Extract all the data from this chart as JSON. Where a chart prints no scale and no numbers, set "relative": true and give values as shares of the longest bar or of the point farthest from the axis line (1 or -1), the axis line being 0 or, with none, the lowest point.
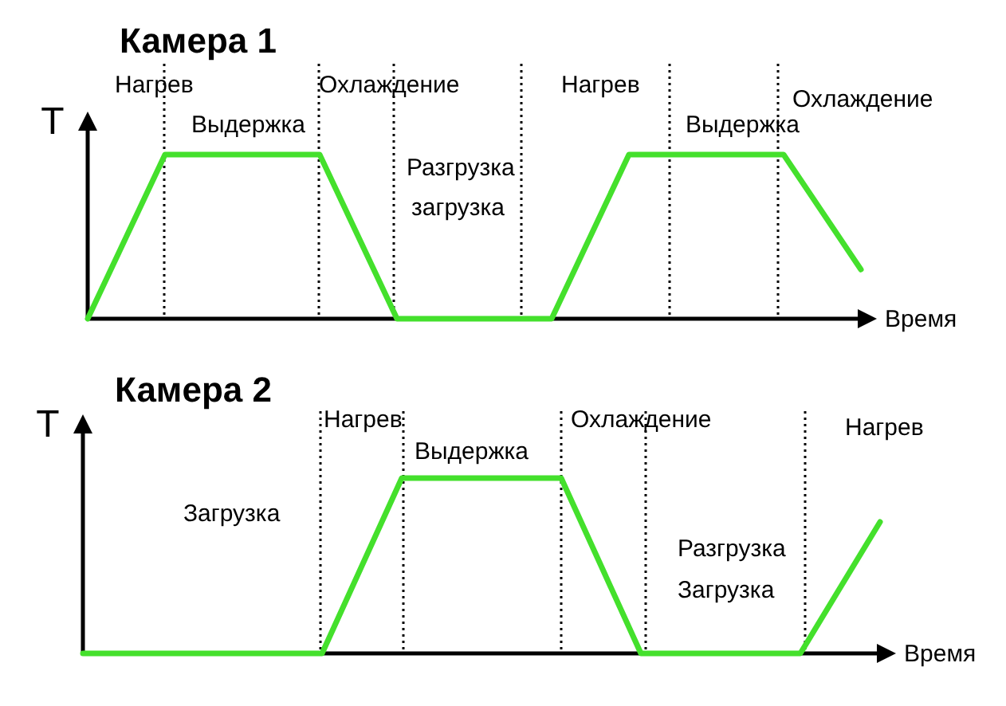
{
  "chart_data": [
    {
      "type": "line",
      "title": "Камера 1",
      "xlabel": "Время",
      "ylabel": "T",
      "relative": true,
      "categories": [
        null,
        null,
        null,
        null,
        null,
        null,
        null,
        null,
        null,
        null,
        null
      ],
      "series": [
        {
          "color": "#44e02c",
          "values": [
            0,
            1,
            1,
            1,
            0,
            0,
            0,
            1,
            1,
            1,
            0.3
          ]
        }
      ],
      "grid": "x",
      "annotations": [
        "Нагрев",
        "Выдержка",
        "Охлаждение",
        "Разгрузка",
        "загрузка",
        "Нагрев",
        "Выдержка",
        "Охлаждение"
      ]
    },
    {
      "type": "line",
      "title": "Камера 2",
      "xlabel": "Время",
      "ylabel": "T",
      "relative": true,
      "categories": [
        null,
        null,
        null,
        null,
        null,
        null,
        null,
        null,
        null,
        null,
        null
      ],
      "series": [
        {
          "color": "#44e02c",
          "values": [
            0,
            0,
            0,
            0,
            1,
            1,
            1,
            0,
            0,
            0,
            0.75
          ]
        }
      ],
      "grid": "x",
      "annotations": [
        "Нагрев",
        "Выдержка",
        "Загрузка",
        "Охлаждение",
        "Разгрузка",
        "Загрузка",
        "Нагрев"
      ]
    }
  ]
}
